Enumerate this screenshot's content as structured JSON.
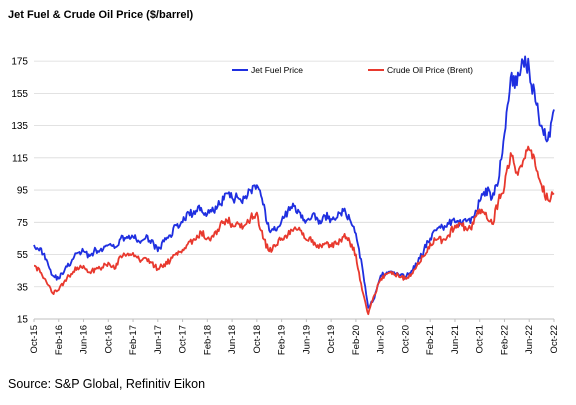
{
  "page": {
    "title": "Jet Fuel & Crude  Oil Price ($/barrel)",
    "source": "Source: S&P Global, Refinitiv Eikon"
  },
  "chart_data": {
    "type": "line",
    "title": "Jet Fuel & Crude  Oil Price ($/barrel)",
    "xlabel": "",
    "ylabel": "",
    "ylim": [
      15,
      185
    ],
    "yticks": [
      15,
      35,
      55,
      75,
      95,
      115,
      135,
      155,
      175
    ],
    "grid": true,
    "legend_position": "top",
    "x_start": "2015-10",
    "x_end": "2022-10",
    "xticks": [
      "Oct-15",
      "Feb-16",
      "Jun-16",
      "Oct-16",
      "Feb-17",
      "Jun-17",
      "Oct-17",
      "Feb-18",
      "Jun-18",
      "Oct-18",
      "Feb-19",
      "Jun-19",
      "Oct-19",
      "Feb-20",
      "Jun-20",
      "Oct-20",
      "Feb-21",
      "Jun-21",
      "Oct-21",
      "Feb-22",
      "Jun-22",
      "Oct-22"
    ],
    "series": [
      {
        "name": "Jet Fuel Price",
        "color": "#1f2fe0",
        "x": [
          "Oct-15",
          "Nov-15",
          "Dec-15",
          "Jan-16",
          "Feb-16",
          "Mar-16",
          "Apr-16",
          "May-16",
          "Jun-16",
          "Jul-16",
          "Aug-16",
          "Sep-16",
          "Oct-16",
          "Nov-16",
          "Dec-16",
          "Jan-17",
          "Feb-17",
          "Mar-17",
          "Apr-17",
          "May-17",
          "Jun-17",
          "Jul-17",
          "Aug-17",
          "Sep-17",
          "Oct-17",
          "Nov-17",
          "Dec-17",
          "Jan-18",
          "Feb-18",
          "Mar-18",
          "Apr-18",
          "May-18",
          "Jun-18",
          "Jul-18",
          "Aug-18",
          "Sep-18",
          "Oct-18",
          "Nov-18",
          "Dec-18",
          "Jan-19",
          "Feb-19",
          "Mar-19",
          "Apr-19",
          "May-19",
          "Jun-19",
          "Jul-19",
          "Aug-19",
          "Sep-19",
          "Oct-19",
          "Nov-19",
          "Dec-19",
          "Jan-20",
          "Feb-20",
          "Mar-20",
          "Apr-20",
          "May-20",
          "Jun-20",
          "Jul-20",
          "Aug-20",
          "Sep-20",
          "Oct-20",
          "Nov-20",
          "Dec-20",
          "Jan-21",
          "Feb-21",
          "Mar-21",
          "Apr-21",
          "May-21",
          "Jun-21",
          "Jul-21",
          "Aug-21",
          "Sep-21",
          "Oct-21",
          "Nov-21",
          "Dec-21",
          "Jan-22",
          "Feb-22",
          "Mar-22",
          "Apr-22",
          "May-22",
          "Jun-22",
          "Jul-22",
          "Aug-22",
          "Sep-22",
          "Oct-22"
        ],
        "values": [
          61,
          59,
          52,
          42,
          40,
          46,
          50,
          56,
          57,
          54,
          58,
          57,
          61,
          59,
          65,
          66,
          66,
          63,
          65,
          64,
          57,
          63,
          67,
          73,
          75,
          81,
          80,
          84,
          80,
          82,
          86,
          93,
          90,
          90,
          90,
          95,
          98,
          86,
          70,
          70,
          76,
          82,
          85,
          81,
          76,
          80,
          74,
          79,
          77,
          78,
          82,
          77,
          68,
          48,
          22,
          28,
          42,
          44,
          44,
          42,
          41,
          45,
          50,
          58,
          65,
          70,
          72,
          74,
          75,
          74,
          76,
          78,
          88,
          96,
          90,
          100,
          130,
          165,
          160,
          175,
          170,
          150,
          135,
          126,
          145
        ]
      },
      {
        "name": "Crude Oil Price (Brent)",
        "color": "#e8392e",
        "x": [
          "Oct-15",
          "Nov-15",
          "Dec-15",
          "Jan-16",
          "Feb-16",
          "Mar-16",
          "Apr-16",
          "May-16",
          "Jun-16",
          "Jul-16",
          "Aug-16",
          "Sep-16",
          "Oct-16",
          "Nov-16",
          "Dec-16",
          "Jan-17",
          "Feb-17",
          "Mar-17",
          "Apr-17",
          "May-17",
          "Jun-17",
          "Jul-17",
          "Aug-17",
          "Sep-17",
          "Oct-17",
          "Nov-17",
          "Dec-17",
          "Jan-18",
          "Feb-18",
          "Mar-18",
          "Apr-18",
          "May-18",
          "Jun-18",
          "Jul-18",
          "Aug-18",
          "Sep-18",
          "Oct-18",
          "Nov-18",
          "Dec-18",
          "Jan-19",
          "Feb-19",
          "Mar-19",
          "Apr-19",
          "May-19",
          "Jun-19",
          "Jul-19",
          "Aug-19",
          "Sep-19",
          "Oct-19",
          "Nov-19",
          "Dec-19",
          "Jan-20",
          "Feb-20",
          "Mar-20",
          "Apr-20",
          "May-20",
          "Jun-20",
          "Jul-20",
          "Aug-20",
          "Sep-20",
          "Oct-20",
          "Nov-20",
          "Dec-20",
          "Jan-21",
          "Feb-21",
          "Mar-21",
          "Apr-21",
          "May-21",
          "Jun-21",
          "Jul-21",
          "Aug-21",
          "Sep-21",
          "Oct-21",
          "Nov-21",
          "Dec-21",
          "Jan-22",
          "Feb-22",
          "Mar-22",
          "Apr-22",
          "May-22",
          "Jun-22",
          "Jul-22",
          "Aug-22",
          "Sep-22",
          "Oct-22"
        ],
        "values": [
          48,
          44,
          38,
          31,
          33,
          39,
          43,
          47,
          48,
          44,
          46,
          47,
          50,
          46,
          54,
          55,
          56,
          52,
          53,
          50,
          46,
          49,
          51,
          56,
          58,
          63,
          64,
          69,
          65,
          66,
          72,
          77,
          74,
          74,
          73,
          78,
          81,
          65,
          57,
          60,
          65,
          67,
          71,
          70,
          64,
          64,
          59,
          62,
          60,
          62,
          66,
          63,
          55,
          33,
          18,
          30,
          40,
          43,
          44,
          41,
          40,
          43,
          50,
          54,
          62,
          64,
          64,
          67,
          73,
          74,
          70,
          74,
          83,
          81,
          74,
          88,
          97,
          118,
          106,
          113,
          120,
          110,
          98,
          89,
          93
        ]
      }
    ]
  }
}
